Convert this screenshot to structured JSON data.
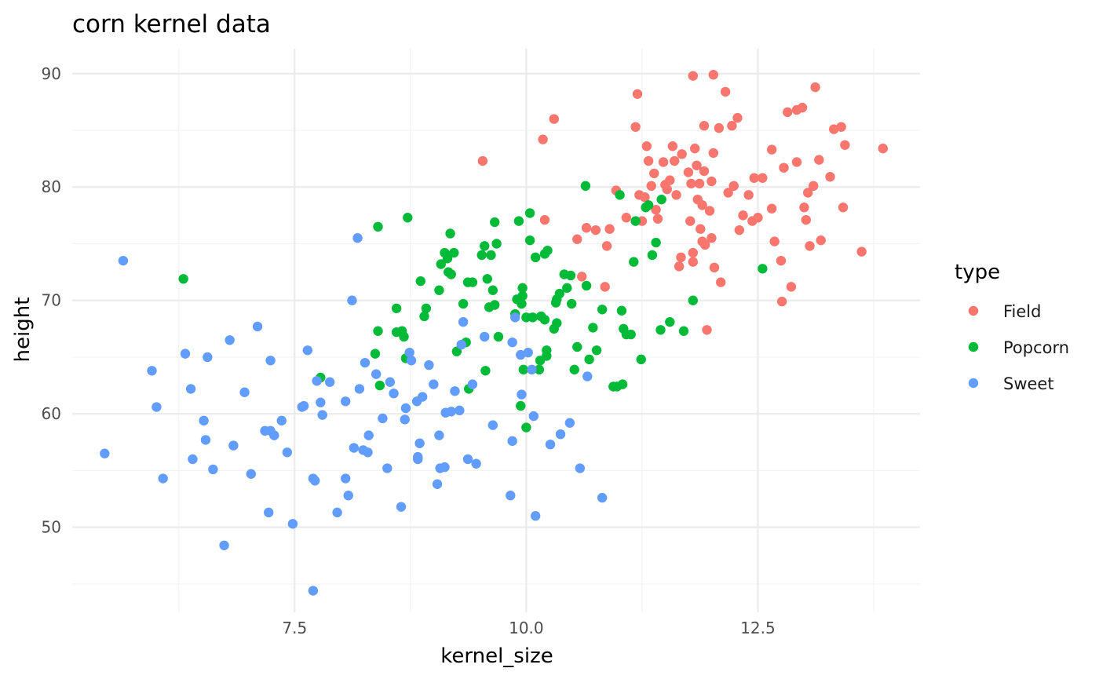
{
  "chart_data": {
    "type": "scatter",
    "title": "corn kernel data",
    "xlabel": "kernel_size",
    "ylabel": "height",
    "xlim": [
      5.1,
      14.25
    ],
    "ylim": [
      42.5,
      92.2
    ],
    "x_ticks": [
      7.5,
      10.0,
      12.5
    ],
    "x_tick_labels": [
      "7.5",
      "10.0",
      "12.5"
    ],
    "x_minor_ticks": [
      6.25,
      8.75,
      11.25,
      13.75
    ],
    "y_ticks": [
      50,
      60,
      70,
      80,
      90
    ],
    "y_tick_labels": [
      "50",
      "60",
      "70",
      "80",
      "90"
    ],
    "y_minor_ticks": [
      45,
      55,
      65,
      75,
      85
    ],
    "grid": true,
    "legend": {
      "title": "type",
      "position": "right"
    },
    "series": [
      {
        "name": "Field",
        "color": "#F8766D",
        "points": [
          [
            9.53,
            82.3
          ],
          [
            10.18,
            84.2
          ],
          [
            10.3,
            86.0
          ],
          [
            10.2,
            77.1
          ],
          [
            10.55,
            75.4
          ],
          [
            10.6,
            72.1
          ],
          [
            10.65,
            76.4
          ],
          [
            10.75,
            76.2
          ],
          [
            10.9,
            76.3
          ],
          [
            10.85,
            71.2
          ],
          [
            10.87,
            74.8
          ],
          [
            10.97,
            79.7
          ],
          [
            11.08,
            77.3
          ],
          [
            11.18,
            85.3
          ],
          [
            11.2,
            88.2
          ],
          [
            11.22,
            79.3
          ],
          [
            11.25,
            77.0
          ],
          [
            11.28,
            79.1
          ],
          [
            11.3,
            83.6
          ],
          [
            11.32,
            82.3
          ],
          [
            11.35,
            80.1
          ],
          [
            11.38,
            81.2
          ],
          [
            11.4,
            78.0
          ],
          [
            11.42,
            77.2
          ],
          [
            11.48,
            82.2
          ],
          [
            11.5,
            80.2
          ],
          [
            11.52,
            79.8
          ],
          [
            11.55,
            80.6
          ],
          [
            11.58,
            83.6
          ],
          [
            11.6,
            82.3
          ],
          [
            11.62,
            79.3
          ],
          [
            11.65,
            73.0
          ],
          [
            11.67,
            73.8
          ],
          [
            11.68,
            82.9
          ],
          [
            11.75,
            81.3
          ],
          [
            11.77,
            77.0
          ],
          [
            11.78,
            80.3
          ],
          [
            11.8,
            89.8
          ],
          [
            11.8,
            73.4
          ],
          [
            11.8,
            74.2
          ],
          [
            11.82,
            83.4
          ],
          [
            11.84,
            81.9
          ],
          [
            11.85,
            78.9
          ],
          [
            11.87,
            80.3
          ],
          [
            11.88,
            76.3
          ],
          [
            11.9,
            75.2
          ],
          [
            11.9,
            78.4
          ],
          [
            11.92,
            81.4
          ],
          [
            11.92,
            85.4
          ],
          [
            11.93,
            74.9
          ],
          [
            11.95,
            67.4
          ],
          [
            11.98,
            77.9
          ],
          [
            12.0,
            80.5
          ],
          [
            12.0,
            75.5
          ],
          [
            12.02,
            89.9
          ],
          [
            12.02,
            83.0
          ],
          [
            12.03,
            72.9
          ],
          [
            12.08,
            85.2
          ],
          [
            12.1,
            71.6
          ],
          [
            12.15,
            88.4
          ],
          [
            12.18,
            79.5
          ],
          [
            12.22,
            85.4
          ],
          [
            12.24,
            80.1
          ],
          [
            12.28,
            86.1
          ],
          [
            12.3,
            76.2
          ],
          [
            12.34,
            77.5
          ],
          [
            12.4,
            79.3
          ],
          [
            12.44,
            77.0
          ],
          [
            12.46,
            80.8
          ],
          [
            12.5,
            77.3
          ],
          [
            12.55,
            80.8
          ],
          [
            12.65,
            78.1
          ],
          [
            12.65,
            83.3
          ],
          [
            12.68,
            75.2
          ],
          [
            12.75,
            73.5
          ],
          [
            12.76,
            69.9
          ],
          [
            12.78,
            81.7
          ],
          [
            12.82,
            86.6
          ],
          [
            12.86,
            71.2
          ],
          [
            12.92,
            86.8
          ],
          [
            12.92,
            82.2
          ],
          [
            12.98,
            87.0
          ],
          [
            13.0,
            78.2
          ],
          [
            13.02,
            77.1
          ],
          [
            13.04,
            79.5
          ],
          [
            13.06,
            74.8
          ],
          [
            13.1,
            80.1
          ],
          [
            13.12,
            88.8
          ],
          [
            13.16,
            82.4
          ],
          [
            13.18,
            75.3
          ],
          [
            13.28,
            80.9
          ],
          [
            13.32,
            85.1
          ],
          [
            13.4,
            85.3
          ],
          [
            13.42,
            78.2
          ],
          [
            13.44,
            83.7
          ],
          [
            13.62,
            74.3
          ],
          [
            13.85,
            83.4
          ]
        ]
      },
      {
        "name": "Popcorn",
        "color": "#00BA38",
        "points": [
          [
            6.3,
            71.9
          ],
          [
            7.78,
            63.2
          ],
          [
            8.37,
            65.3
          ],
          [
            8.4,
            67.3
          ],
          [
            8.4,
            76.5
          ],
          [
            8.42,
            62.5
          ],
          [
            8.6,
            67.2
          ],
          [
            8.6,
            69.3
          ],
          [
            8.66,
            67.3
          ],
          [
            8.68,
            66.8
          ],
          [
            8.7,
            64.9
          ],
          [
            8.72,
            77.3
          ],
          [
            8.86,
            71.7
          ],
          [
            8.9,
            68.6
          ],
          [
            8.92,
            69.3
          ],
          [
            9.06,
            70.9
          ],
          [
            9.08,
            73.2
          ],
          [
            9.12,
            74.2
          ],
          [
            9.15,
            73.7
          ],
          [
            9.16,
            72.5
          ],
          [
            9.18,
            75.9
          ],
          [
            9.19,
            72.3
          ],
          [
            9.22,
            74.2
          ],
          [
            9.25,
            65.5
          ],
          [
            9.32,
            69.7
          ],
          [
            9.35,
            66.3
          ],
          [
            9.37,
            71.6
          ],
          [
            9.38,
            62.2
          ],
          [
            9.42,
            71.6
          ],
          [
            9.52,
            74.0
          ],
          [
            9.55,
            74.8
          ],
          [
            9.56,
            63.8
          ],
          [
            9.58,
            71.9
          ],
          [
            9.6,
            69.4
          ],
          [
            9.62,
            74.0
          ],
          [
            9.64,
            70.9
          ],
          [
            9.66,
            69.6
          ],
          [
            9.66,
            76.9
          ],
          [
            9.68,
            75.0
          ],
          [
            9.7,
            66.8
          ],
          [
            9.88,
            68.8
          ],
          [
            9.9,
            70.1
          ],
          [
            9.92,
            77.0
          ],
          [
            9.94,
            60.7
          ],
          [
            9.95,
            69.7
          ],
          [
            9.96,
            70.4
          ],
          [
            9.96,
            71.1
          ],
          [
            9.97,
            63.9
          ],
          [
            10.0,
            58.8
          ],
          [
            10.0,
            68.5
          ],
          [
            10.04,
            77.7
          ],
          [
            10.04,
            75.3
          ],
          [
            10.07,
            68.5
          ],
          [
            10.1,
            73.8
          ],
          [
            10.14,
            63.9
          ],
          [
            10.15,
            64.7
          ],
          [
            10.16,
            68.6
          ],
          [
            10.2,
            74.1
          ],
          [
            10.2,
            68.3
          ],
          [
            10.22,
            65.1
          ],
          [
            10.22,
            65.6
          ],
          [
            10.23,
            74.4
          ],
          [
            10.3,
            67.5
          ],
          [
            10.32,
            69.8
          ],
          [
            10.33,
            68.0
          ],
          [
            10.33,
            70.1
          ],
          [
            10.36,
            70.6
          ],
          [
            10.41,
            72.3
          ],
          [
            10.44,
            71.1
          ],
          [
            10.48,
            72.2
          ],
          [
            10.49,
            69.7
          ],
          [
            10.52,
            63.9
          ],
          [
            10.55,
            65.9
          ],
          [
            10.64,
            80.1
          ],
          [
            10.65,
            71.3
          ],
          [
            10.68,
            64.8
          ],
          [
            10.72,
            67.6
          ],
          [
            10.76,
            65.6
          ],
          [
            10.82,
            69.2
          ],
          [
            10.94,
            62.4
          ],
          [
            10.98,
            62.4
          ],
          [
            11.01,
            79.3
          ],
          [
            11.03,
            69.1
          ],
          [
            11.04,
            62.6
          ],
          [
            11.05,
            67.5
          ],
          [
            11.08,
            67.0
          ],
          [
            11.13,
            67.0
          ],
          [
            11.16,
            73.4
          ],
          [
            11.18,
            77.0
          ],
          [
            11.24,
            64.8
          ],
          [
            11.29,
            78.2
          ],
          [
            11.32,
            78.4
          ],
          [
            11.36,
            74.0
          ],
          [
            11.4,
            75.1
          ],
          [
            11.45,
            67.4
          ],
          [
            11.46,
            78.9
          ],
          [
            11.55,
            68.1
          ],
          [
            11.7,
            67.3
          ],
          [
            11.8,
            70.0
          ],
          [
            12.55,
            72.8
          ]
        ]
      },
      {
        "name": "Sweet",
        "color": "#619CFF",
        "points": [
          [
            5.45,
            56.5
          ],
          [
            5.65,
            73.5
          ],
          [
            5.96,
            63.8
          ],
          [
            6.01,
            60.6
          ],
          [
            6.08,
            54.3
          ],
          [
            6.32,
            65.3
          ],
          [
            6.38,
            62.2
          ],
          [
            6.4,
            56.0
          ],
          [
            6.52,
            59.4
          ],
          [
            6.54,
            57.7
          ],
          [
            6.56,
            65.0
          ],
          [
            6.62,
            55.1
          ],
          [
            6.74,
            48.4
          ],
          [
            6.8,
            66.5
          ],
          [
            6.84,
            57.2
          ],
          [
            6.96,
            61.9
          ],
          [
            7.03,
            54.7
          ],
          [
            7.1,
            67.7
          ],
          [
            7.18,
            58.5
          ],
          [
            7.22,
            51.3
          ],
          [
            7.24,
            58.5
          ],
          [
            7.24,
            64.7
          ],
          [
            7.28,
            58.1
          ],
          [
            7.36,
            59.4
          ],
          [
            7.42,
            56.6
          ],
          [
            7.48,
            50.3
          ],
          [
            7.58,
            60.6
          ],
          [
            7.6,
            60.7
          ],
          [
            7.64,
            65.6
          ],
          [
            7.7,
            54.3
          ],
          [
            7.7,
            44.4
          ],
          [
            7.72,
            54.1
          ],
          [
            7.74,
            62.9
          ],
          [
            7.78,
            61.0
          ],
          [
            7.8,
            59.9
          ],
          [
            7.88,
            62.8
          ],
          [
            7.96,
            51.3
          ],
          [
            8.05,
            54.3
          ],
          [
            8.05,
            61.1
          ],
          [
            8.08,
            52.8
          ],
          [
            8.12,
            70.0
          ],
          [
            8.14,
            57.0
          ],
          [
            8.18,
            75.5
          ],
          [
            8.2,
            62.2
          ],
          [
            8.24,
            56.8
          ],
          [
            8.26,
            64.5
          ],
          [
            8.29,
            56.6
          ],
          [
            8.3,
            58.1
          ],
          [
            8.38,
            63.5
          ],
          [
            8.45,
            59.6
          ],
          [
            8.5,
            55.2
          ],
          [
            8.53,
            62.8
          ],
          [
            8.57,
            61.8
          ],
          [
            8.65,
            51.8
          ],
          [
            8.69,
            59.5
          ],
          [
            8.7,
            60.5
          ],
          [
            8.74,
            65.4
          ],
          [
            8.76,
            64.7
          ],
          [
            8.82,
            61.1
          ],
          [
            8.83,
            56.0
          ],
          [
            8.83,
            56.2
          ],
          [
            8.85,
            57.4
          ],
          [
            8.88,
            61.5
          ],
          [
            8.95,
            64.3
          ],
          [
            9.0,
            62.6
          ],
          [
            9.04,
            53.8
          ],
          [
            9.06,
            58.1
          ],
          [
            9.07,
            55.2
          ],
          [
            9.12,
            55.3
          ],
          [
            9.13,
            60.1
          ],
          [
            9.19,
            60.2
          ],
          [
            9.23,
            62.0
          ],
          [
            9.28,
            60.3
          ],
          [
            9.3,
            66.1
          ],
          [
            9.32,
            68.1
          ],
          [
            9.37,
            56.0
          ],
          [
            9.42,
            62.6
          ],
          [
            9.46,
            55.6
          ],
          [
            9.55,
            66.8
          ],
          [
            9.64,
            59.0
          ],
          [
            9.83,
            52.8
          ],
          [
            9.85,
            66.3
          ],
          [
            9.85,
            57.6
          ],
          [
            9.88,
            68.5
          ],
          [
            9.94,
            65.2
          ],
          [
            9.95,
            61.7
          ],
          [
            10.02,
            65.4
          ],
          [
            10.06,
            63.9
          ],
          [
            10.08,
            59.8
          ],
          [
            10.1,
            51.0
          ],
          [
            10.26,
            57.3
          ],
          [
            10.37,
            58.2
          ],
          [
            10.47,
            59.2
          ],
          [
            10.58,
            55.2
          ],
          [
            10.66,
            63.3
          ],
          [
            10.82,
            52.6
          ]
        ]
      }
    ]
  }
}
